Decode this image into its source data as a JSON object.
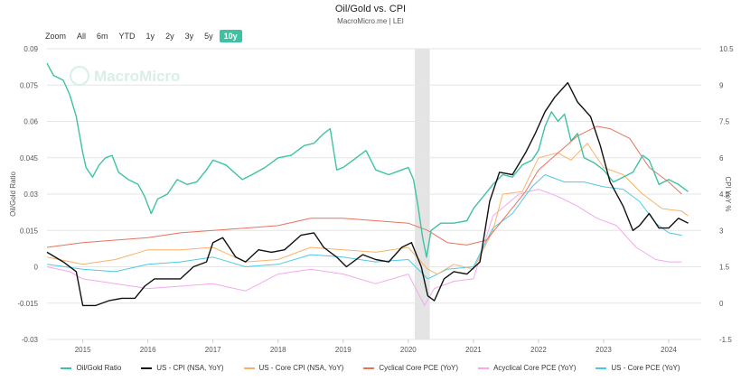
{
  "header": {
    "title": "Oil/Gold vs. CPI",
    "subtitle": "MacroMicro.me | LEI"
  },
  "zoom": {
    "label": "Zoom",
    "options": [
      "All",
      "6m",
      "YTD",
      "1y",
      "2y",
      "3y",
      "5y",
      "10y"
    ],
    "active": "10y"
  },
  "watermark": "MacroMicro",
  "colors": {
    "oil_gold": "#3ec2a3",
    "cpi": "#111111",
    "core_cpi": "#f7b36b",
    "cyclical_pce": "#e8735c",
    "acyclical_pce": "#f4a9ec",
    "core_pce": "#4cc9e8",
    "recession": "#e4e4e4"
  },
  "chart_data": {
    "type": "line",
    "title": "Oil/Gold vs. CPI",
    "x_range": [
      2014.45,
      2024.5
    ],
    "x_ticks": [
      "2015",
      "2016",
      "2017",
      "2018",
      "2019",
      "2020",
      "2021",
      "2022",
      "2023",
      "2024"
    ],
    "y_left": {
      "label": "Oil/Gold Ratio",
      "range": [
        -0.03,
        0.09
      ],
      "ticks": [
        "0.09",
        "0.075",
        "0.06",
        "0.045",
        "0.03",
        "0.015",
        "0",
        "-0.015",
        "-0.03"
      ]
    },
    "y_right": {
      "label": "CPI YoY %",
      "range": [
        -1.5,
        10.5
      ],
      "ticks": [
        "10.5",
        "9",
        "7.5",
        "6",
        "4.5",
        "3",
        "1.5",
        "0",
        "-1.5"
      ]
    },
    "shaded_periods": [
      [
        2020.1,
        2020.33
      ]
    ],
    "grid": true,
    "legend_position": "bottom",
    "series": [
      {
        "name": "Oil/Gold Ratio",
        "axis": "left",
        "color_key": "oil_gold",
        "points": [
          [
            2014.45,
            0.084
          ],
          [
            2014.55,
            0.079
          ],
          [
            2014.7,
            0.077
          ],
          [
            2014.8,
            0.071
          ],
          [
            2014.9,
            0.062
          ],
          [
            2015.0,
            0.047
          ],
          [
            2015.05,
            0.041
          ],
          [
            2015.15,
            0.037
          ],
          [
            2015.25,
            0.042
          ],
          [
            2015.35,
            0.045
          ],
          [
            2015.45,
            0.046
          ],
          [
            2015.55,
            0.039
          ],
          [
            2015.7,
            0.036
          ],
          [
            2015.85,
            0.034
          ],
          [
            2015.95,
            0.029
          ],
          [
            2016.05,
            0.022
          ],
          [
            2016.15,
            0.028
          ],
          [
            2016.3,
            0.03
          ],
          [
            2016.45,
            0.036
          ],
          [
            2016.6,
            0.034
          ],
          [
            2016.75,
            0.035
          ],
          [
            2016.9,
            0.04
          ],
          [
            2017.0,
            0.044
          ],
          [
            2017.2,
            0.042
          ],
          [
            2017.45,
            0.036
          ],
          [
            2017.6,
            0.038
          ],
          [
            2017.8,
            0.041
          ],
          [
            2018.0,
            0.045
          ],
          [
            2018.2,
            0.046
          ],
          [
            2018.4,
            0.05
          ],
          [
            2018.55,
            0.051
          ],
          [
            2018.7,
            0.055
          ],
          [
            2018.8,
            0.057
          ],
          [
            2018.9,
            0.04
          ],
          [
            2019.0,
            0.041
          ],
          [
            2019.2,
            0.045
          ],
          [
            2019.35,
            0.048
          ],
          [
            2019.5,
            0.04
          ],
          [
            2019.7,
            0.038
          ],
          [
            2019.9,
            0.04
          ],
          [
            2020.0,
            0.041
          ],
          [
            2020.08,
            0.036
          ],
          [
            2020.15,
            0.025
          ],
          [
            2020.22,
            0.012
          ],
          [
            2020.28,
            0.004
          ],
          [
            2020.35,
            0.015
          ],
          [
            2020.5,
            0.018
          ],
          [
            2020.7,
            0.018
          ],
          [
            2020.9,
            0.019
          ],
          [
            2021.0,
            0.024
          ],
          [
            2021.15,
            0.029
          ],
          [
            2021.3,
            0.034
          ],
          [
            2021.45,
            0.038
          ],
          [
            2021.6,
            0.037
          ],
          [
            2021.75,
            0.042
          ],
          [
            2021.9,
            0.044
          ],
          [
            2022.0,
            0.048
          ],
          [
            2022.1,
            0.058
          ],
          [
            2022.2,
            0.064
          ],
          [
            2022.3,
            0.06
          ],
          [
            2022.4,
            0.063
          ],
          [
            2022.5,
            0.052
          ],
          [
            2022.6,
            0.055
          ],
          [
            2022.7,
            0.045
          ],
          [
            2022.85,
            0.043
          ],
          [
            2023.0,
            0.04
          ],
          [
            2023.15,
            0.035
          ],
          [
            2023.3,
            0.037
          ],
          [
            2023.45,
            0.039
          ],
          [
            2023.6,
            0.046
          ],
          [
            2023.7,
            0.044
          ],
          [
            2023.85,
            0.034
          ],
          [
            2024.0,
            0.036
          ],
          [
            2024.15,
            0.034
          ],
          [
            2024.3,
            0.031
          ]
        ]
      },
      {
        "name": "US - CPI (NSA, YoY)",
        "axis": "right",
        "color_key": "cpi",
        "points": [
          [
            2014.45,
            2.1
          ],
          [
            2014.7,
            1.7
          ],
          [
            2014.9,
            1.3
          ],
          [
            2015.0,
            -0.1
          ],
          [
            2015.2,
            -0.1
          ],
          [
            2015.4,
            0.1
          ],
          [
            2015.6,
            0.2
          ],
          [
            2015.8,
            0.2
          ],
          [
            2015.95,
            0.7
          ],
          [
            2016.1,
            1.0
          ],
          [
            2016.3,
            1.0
          ],
          [
            2016.5,
            1.0
          ],
          [
            2016.7,
            1.5
          ],
          [
            2016.9,
            1.7
          ],
          [
            2017.0,
            2.5
          ],
          [
            2017.15,
            2.7
          ],
          [
            2017.35,
            1.9
          ],
          [
            2017.5,
            1.7
          ],
          [
            2017.7,
            2.2
          ],
          [
            2017.9,
            2.1
          ],
          [
            2018.1,
            2.2
          ],
          [
            2018.35,
            2.8
          ],
          [
            2018.55,
            2.9
          ],
          [
            2018.7,
            2.3
          ],
          [
            2018.9,
            1.9
          ],
          [
            2019.05,
            1.5
          ],
          [
            2019.3,
            2.0
          ],
          [
            2019.5,
            1.8
          ],
          [
            2019.7,
            1.7
          ],
          [
            2019.9,
            2.3
          ],
          [
            2020.05,
            2.5
          ],
          [
            2020.2,
            1.5
          ],
          [
            2020.3,
            0.3
          ],
          [
            2020.4,
            0.1
          ],
          [
            2020.55,
            1.0
          ],
          [
            2020.7,
            1.3
          ],
          [
            2020.9,
            1.2
          ],
          [
            2021.1,
            1.7
          ],
          [
            2021.25,
            4.2
          ],
          [
            2021.4,
            5.4
          ],
          [
            2021.6,
            5.3
          ],
          [
            2021.8,
            6.2
          ],
          [
            2021.95,
            7.0
          ],
          [
            2022.1,
            7.9
          ],
          [
            2022.25,
            8.5
          ],
          [
            2022.45,
            9.1
          ],
          [
            2022.6,
            8.3
          ],
          [
            2022.8,
            7.7
          ],
          [
            2022.95,
            6.5
          ],
          [
            2023.1,
            5.0
          ],
          [
            2023.3,
            4.0
          ],
          [
            2023.45,
            3.0
          ],
          [
            2023.55,
            3.2
          ],
          [
            2023.7,
            3.7
          ],
          [
            2023.85,
            3.1
          ],
          [
            2024.0,
            3.1
          ],
          [
            2024.15,
            3.5
          ],
          [
            2024.3,
            3.3
          ]
        ]
      },
      {
        "name": "US - Core CPI (NSA, YoY)",
        "axis": "right",
        "color_key": "core_cpi",
        "points": [
          [
            2014.45,
            1.9
          ],
          [
            2015.0,
            1.6
          ],
          [
            2015.5,
            1.8
          ],
          [
            2016.0,
            2.2
          ],
          [
            2016.5,
            2.2
          ],
          [
            2017.0,
            2.3
          ],
          [
            2017.5,
            1.7
          ],
          [
            2018.0,
            1.8
          ],
          [
            2018.5,
            2.3
          ],
          [
            2019.0,
            2.2
          ],
          [
            2019.5,
            2.1
          ],
          [
            2020.0,
            2.3
          ],
          [
            2020.3,
            1.4
          ],
          [
            2020.45,
            1.2
          ],
          [
            2020.7,
            1.6
          ],
          [
            2021.0,
            1.4
          ],
          [
            2021.3,
            3.0
          ],
          [
            2021.45,
            4.5
          ],
          [
            2021.75,
            4.6
          ],
          [
            2022.0,
            6.0
          ],
          [
            2022.3,
            6.2
          ],
          [
            2022.5,
            5.9
          ],
          [
            2022.75,
            6.6
          ],
          [
            2023.0,
            5.6
          ],
          [
            2023.3,
            5.3
          ],
          [
            2023.6,
            4.5
          ],
          [
            2023.9,
            3.9
          ],
          [
            2024.2,
            3.8
          ],
          [
            2024.3,
            3.6
          ]
        ]
      },
      {
        "name": "Cyclical Core PCE (YoY)",
        "axis": "right",
        "color_key": "cyclical_pce",
        "points": [
          [
            2014.45,
            2.3
          ],
          [
            2015.0,
            2.5
          ],
          [
            2015.5,
            2.6
          ],
          [
            2016.0,
            2.7
          ],
          [
            2016.5,
            2.9
          ],
          [
            2017.0,
            3.0
          ],
          [
            2017.5,
            3.1
          ],
          [
            2018.0,
            3.2
          ],
          [
            2018.5,
            3.5
          ],
          [
            2019.0,
            3.5
          ],
          [
            2019.5,
            3.4
          ],
          [
            2020.0,
            3.3
          ],
          [
            2020.3,
            3.0
          ],
          [
            2020.6,
            2.5
          ],
          [
            2020.9,
            2.4
          ],
          [
            2021.2,
            2.6
          ],
          [
            2021.5,
            3.6
          ],
          [
            2021.8,
            4.6
          ],
          [
            2022.0,
            5.5
          ],
          [
            2022.3,
            6.2
          ],
          [
            2022.6,
            6.9
          ],
          [
            2022.9,
            7.3
          ],
          [
            2023.1,
            7.2
          ],
          [
            2023.4,
            6.8
          ],
          [
            2023.7,
            5.6
          ],
          [
            2024.0,
            5.0
          ],
          [
            2024.2,
            4.5
          ]
        ]
      },
      {
        "name": "Acyclical Core PCE (YoY)",
        "axis": "right",
        "color_key": "acyclical_pce",
        "points": [
          [
            2014.45,
            1.5
          ],
          [
            2014.8,
            1.3
          ],
          [
            2015.0,
            1.0
          ],
          [
            2015.5,
            0.8
          ],
          [
            2016.0,
            0.6
          ],
          [
            2016.5,
            0.7
          ],
          [
            2017.0,
            0.8
          ],
          [
            2017.5,
            0.5
          ],
          [
            2018.0,
            1.2
          ],
          [
            2018.5,
            1.4
          ],
          [
            2019.0,
            1.2
          ],
          [
            2019.5,
            0.8
          ],
          [
            2020.0,
            1.2
          ],
          [
            2020.25,
            -0.1
          ],
          [
            2020.4,
            0.6
          ],
          [
            2020.7,
            0.9
          ],
          [
            2021.0,
            1.0
          ],
          [
            2021.3,
            3.6
          ],
          [
            2021.7,
            4.5
          ],
          [
            2022.0,
            4.7
          ],
          [
            2022.3,
            4.4
          ],
          [
            2022.6,
            4.0
          ],
          [
            2022.9,
            3.5
          ],
          [
            2023.2,
            3.2
          ],
          [
            2023.5,
            2.3
          ],
          [
            2023.8,
            1.8
          ],
          [
            2024.0,
            1.7
          ],
          [
            2024.2,
            1.7
          ]
        ]
      },
      {
        "name": "US - Core PCE (YoY)",
        "axis": "right",
        "color_key": "core_pce",
        "points": [
          [
            2014.45,
            1.6
          ],
          [
            2015.0,
            1.4
          ],
          [
            2015.5,
            1.3
          ],
          [
            2016.0,
            1.6
          ],
          [
            2016.5,
            1.7
          ],
          [
            2017.0,
            1.9
          ],
          [
            2017.5,
            1.5
          ],
          [
            2018.0,
            1.6
          ],
          [
            2018.5,
            2.0
          ],
          [
            2019.0,
            1.9
          ],
          [
            2019.5,
            1.7
          ],
          [
            2020.0,
            1.8
          ],
          [
            2020.3,
            1.0
          ],
          [
            2020.6,
            1.4
          ],
          [
            2021.0,
            1.5
          ],
          [
            2021.3,
            3.1
          ],
          [
            2021.6,
            3.7
          ],
          [
            2021.9,
            4.8
          ],
          [
            2022.1,
            5.3
          ],
          [
            2022.4,
            5.0
          ],
          [
            2022.7,
            5.0
          ],
          [
            2023.0,
            4.8
          ],
          [
            2023.3,
            4.7
          ],
          [
            2023.55,
            4.2
          ],
          [
            2023.8,
            3.3
          ],
          [
            2024.0,
            2.9
          ],
          [
            2024.2,
            2.8
          ]
        ]
      }
    ]
  }
}
